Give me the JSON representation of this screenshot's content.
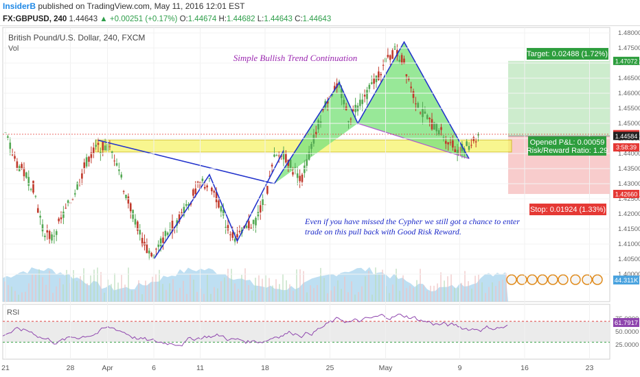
{
  "header": {
    "author": "InsiderB",
    "published_text": "published on TradingView.com, May 11, 2016 12:01 EST",
    "symbol": "FX:GBPUSD, 240",
    "last": "1.44643",
    "change": "+0.00251 (+0.17%)",
    "open_label": "O:",
    "open": "1.44674",
    "high_label": "H:",
    "high": "1.44682",
    "low_label": "L:",
    "low": "1.44643",
    "close_label": "C:",
    "close": "1.44643"
  },
  "chart": {
    "pair_label": "British Pound/U.S. Dollar, 240, FXCM",
    "volume_label": "Vol",
    "rsi_label": "RSI",
    "title_annotation": "Simple Bullish Trend Continuation",
    "note_line1": "Even if you have missed the Cypher we still got a chance to enter",
    "note_line2": "trade on this pull back with Good Risk Reward.",
    "target_label": "Target: 0.02488 (1.72%)",
    "stop_label": "Stop: 0.01924 (1.33%)",
    "pnl_label": "Opened P&L: 0.00059",
    "rr_label": "Risk/Reward Ratio: 1.29",
    "volume_tag": "44.311K",
    "rsi_value_tag": "61.7917",
    "countdown_tag": "3:58:39",
    "colors": {
      "pattern_line": "#2233cc",
      "pattern_fill": "#7ee27e",
      "zone_fill": "#f6f36a",
      "target_fill": "#cdeccd",
      "stop_fill": "#f8cccc",
      "up_candle": "#53a853",
      "down_candle": "#c0392b",
      "volume": "#a8d4ee",
      "rsi_line": "#8e44ad",
      "annotation_title": "#9b27b0",
      "annotation_note": "#1a28c8"
    }
  },
  "chart_data": {
    "type": "candlestick",
    "x_tick_labels": [
      "21",
      "28",
      "Apr",
      "6",
      "11",
      "18",
      "25",
      "May",
      "9",
      "16",
      "23"
    ],
    "y_tick_labels": [
      "1.48000",
      "1.47500",
      "1.47000",
      "1.46500",
      "1.46000",
      "1.45500",
      "1.45000",
      "1.44500",
      "1.44000",
      "1.43500",
      "1.43000",
      "1.42500",
      "1.42000",
      "1.41500",
      "1.41000",
      "1.40500",
      "1.40000"
    ],
    "ylim": [
      1.399,
      1.481
    ],
    "price_tags": [
      "1.47072",
      "1.44643",
      "1.44584",
      "1.42660"
    ],
    "rsi_tick_labels": [
      "75.0000",
      "50.0000",
      "25.0000"
    ],
    "rsi_ylim": [
      12,
      86
    ],
    "rsi_levels": [
      70,
      30
    ],
    "cypher_points": [
      {
        "x": "Mar 31",
        "y": 1.4444
      },
      {
        "x": "Apr 19",
        "y": 1.43
      },
      {
        "x": "Apr 26",
        "y": 1.4635
      },
      {
        "x": "Apr 28",
        "y": 1.45
      },
      {
        "x": "May 3",
        "y": 1.477
      },
      {
        "x": "May 10",
        "y": 1.4383
      }
    ],
    "pattern_points_early": [
      {
        "x": "Apr 6",
        "y": 1.405
      },
      {
        "x": "Apr 12",
        "y": 1.433
      },
      {
        "x": "Apr 15",
        "y": 1.411
      },
      {
        "x": "Apr 20",
        "y": 1.441
      }
    ],
    "support_zone": [
      1.4405,
      1.4445
    ],
    "entry": 1.44584,
    "target": 1.47072,
    "stop": 1.4266
  }
}
